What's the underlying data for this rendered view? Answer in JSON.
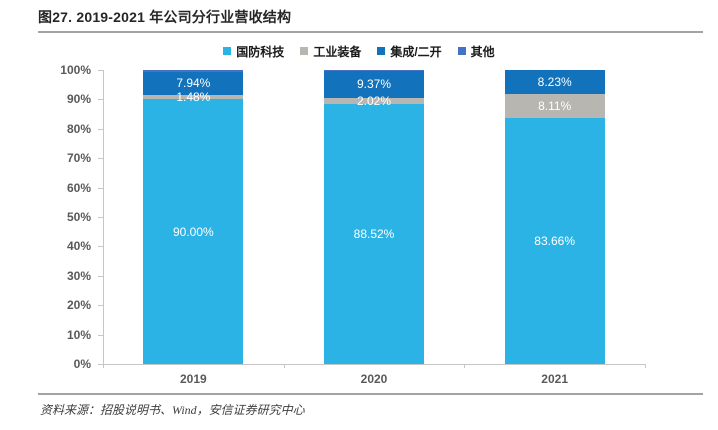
{
  "title": "图27. 2019-2021 年公司分行业营收结构",
  "source": "资料来源：招股说明书、Wind，安信证券研究中心",
  "chart_data": {
    "type": "bar",
    "stacked": true,
    "title": "图27. 2019-2021 年公司分行业营收结构",
    "xlabel": "",
    "ylabel": "",
    "categories": [
      "2019",
      "2020",
      "2021"
    ],
    "series": [
      {
        "name": "国防科技",
        "color": "#2BB3E6",
        "values": [
          90.0,
          88.52,
          83.66
        ],
        "labels": [
          "90.00%",
          "88.52%",
          "83.66%"
        ]
      },
      {
        "name": "工业装备",
        "color": "#B8B6B1",
        "values": [
          1.48,
          2.02,
          8.11
        ],
        "labels": [
          "1.48%",
          "2.02%",
          "8.11%"
        ]
      },
      {
        "name": "集成/二开",
        "color": "#1272BB",
        "values": [
          7.94,
          9.37,
          8.23
        ],
        "labels": [
          "7.94%",
          "9.37%",
          "8.23%"
        ]
      },
      {
        "name": "其他",
        "color": "#4472C4",
        "values": [
          0.58,
          0.09,
          0.0
        ],
        "labels": [
          null,
          null,
          null
        ]
      }
    ],
    "ylim": [
      0,
      100
    ],
    "ytick_step": 10,
    "ytick_format": "{v}%",
    "legend_position": "top",
    "grid": false,
    "label_color_inside": "#ffffff"
  }
}
